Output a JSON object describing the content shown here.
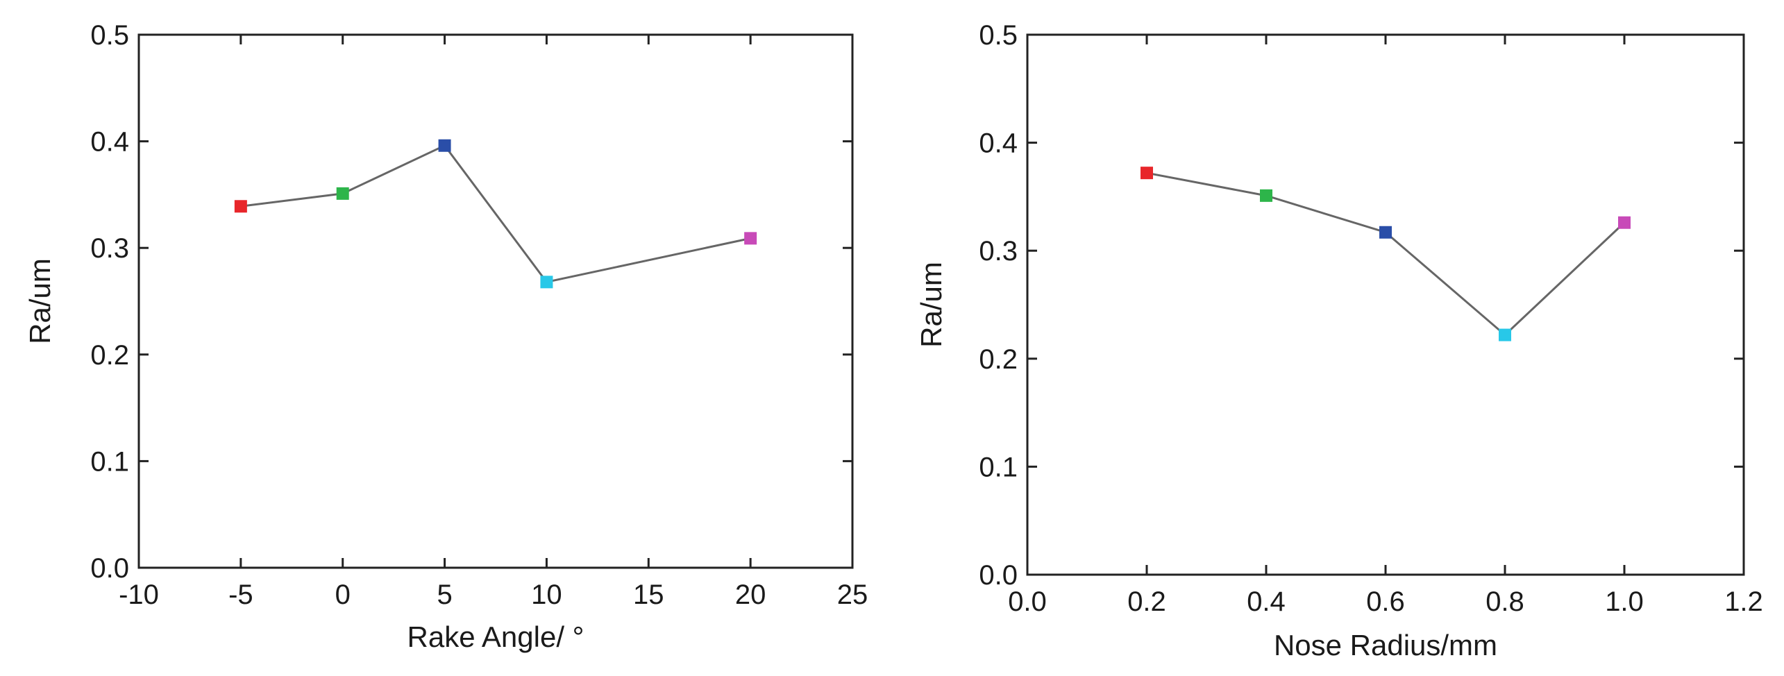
{
  "chart_data": [
    {
      "type": "line",
      "xlabel": "Rake Angle/ °",
      "ylabel": "Ra/um",
      "xlim": [
        -10,
        25
      ],
      "ylim": [
        0.0,
        0.5
      ],
      "x_ticks": [
        "-10",
        "-5",
        "0",
        "5",
        "10",
        "15",
        "20",
        "25"
      ],
      "y_ticks": [
        "0.0",
        "0.1",
        "0.2",
        "0.3",
        "0.4",
        "0.5"
      ],
      "grid": false,
      "series": [
        {
          "x": [
            -5,
            0,
            5,
            10,
            20
          ],
          "y": [
            0.339,
            0.351,
            0.396,
            0.268,
            0.309
          ],
          "marker_colors": [
            "#e8262a",
            "#2db54a",
            "#2a4ea8",
            "#28c8e8",
            "#c84ab8"
          ],
          "line_color": "#666666"
        }
      ]
    },
    {
      "type": "line",
      "xlabel": "Nose Radius/mm",
      "ylabel": "Ra/um",
      "xlim": [
        0.0,
        1.2
      ],
      "ylim": [
        0.0,
        0.5
      ],
      "x_ticks": [
        "0.0",
        "0.2",
        "0.4",
        "0.6",
        "0.8",
        "1.0",
        "1.2"
      ],
      "y_ticks": [
        "0.0",
        "0.1",
        "0.2",
        "0.3",
        "0.4",
        "0.5"
      ],
      "grid": false,
      "series": [
        {
          "x": [
            0.2,
            0.4,
            0.6,
            0.8,
            1.0
          ],
          "y": [
            0.372,
            0.351,
            0.317,
            0.222,
            0.326
          ],
          "marker_colors": [
            "#e8262a",
            "#2db54a",
            "#2a4ea8",
            "#28c8e8",
            "#c84ab8"
          ],
          "line_color": "#666666"
        }
      ]
    }
  ]
}
